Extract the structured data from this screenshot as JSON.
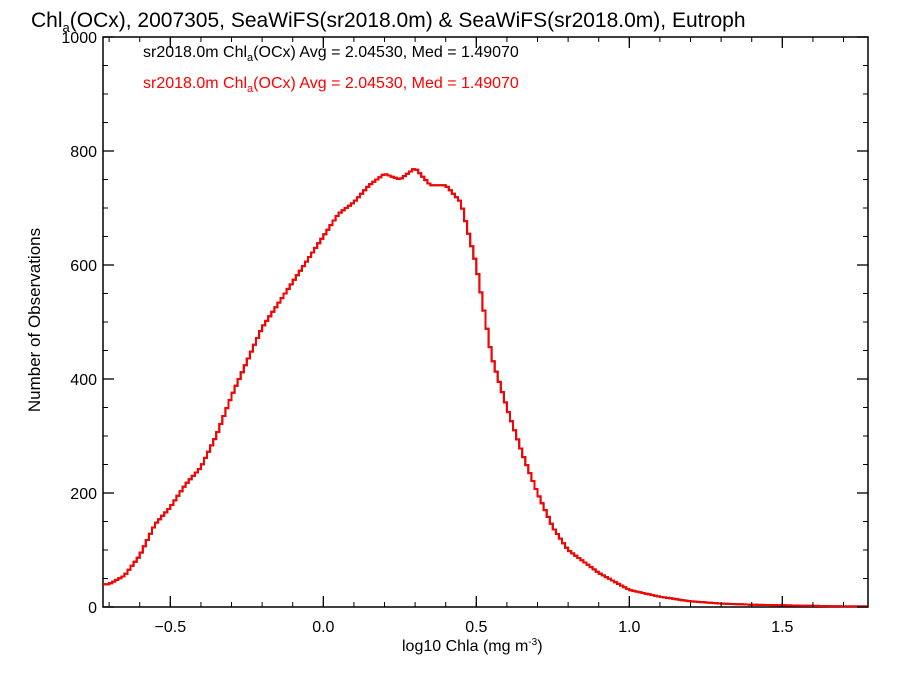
{
  "chart_data": {
    "type": "histogram",
    "title_parts": [
      "Chl",
      "a",
      "(OCx), 2007305, SeaWiFS(sr2018.0m) & SeaWiFS(sr2018.0m), Eutroph"
    ],
    "xlabel_parts": [
      "log10 Chla (mg m",
      "-3",
      ")"
    ],
    "ylabel": "Number of Observations",
    "xlim": [
      -0.72,
      1.78
    ],
    "ylim": [
      0,
      1000
    ],
    "xticks": [
      -0.5,
      0.0,
      0.5,
      1.0,
      1.5
    ],
    "xtick_labels": [
      "−0.5",
      "0.0",
      "0.5",
      "1.0",
      "1.5"
    ],
    "yticks": [
      0,
      200,
      400,
      600,
      800,
      1000
    ],
    "ytick_labels": [
      "0",
      "200",
      "400",
      "600",
      "800",
      "1000"
    ],
    "grid": false,
    "legend_position": "top-left",
    "series": [
      {
        "name_parts": [
          "sr2018.0m Chl",
          "a",
          "(OCx) Avg = 2.04530, Med = 1.49070"
        ],
        "color": "#000000"
      },
      {
        "name_parts": [
          "sr2018.0m Chl",
          "a",
          "(OCx) Avg = 2.04530, Med = 1.49070"
        ],
        "color": "#ff0000"
      }
    ],
    "x": [
      -0.7,
      -0.65,
      -0.6,
      -0.55,
      -0.5,
      -0.45,
      -0.4,
      -0.35,
      -0.3,
      -0.25,
      -0.2,
      -0.15,
      -0.1,
      -0.05,
      0.0,
      0.05,
      0.1,
      0.15,
      0.2,
      0.25,
      0.3,
      0.35,
      0.4,
      0.45,
      0.5,
      0.55,
      0.6,
      0.65,
      0.7,
      0.75,
      0.8,
      0.85,
      0.9,
      0.95,
      1.0,
      1.1,
      1.2,
      1.3,
      1.4,
      1.5,
      1.6,
      1.7,
      1.78
    ],
    "y": [
      40,
      55,
      90,
      145,
      175,
      215,
      245,
      300,
      370,
      430,
      490,
      530,
      570,
      610,
      650,
      690,
      710,
      740,
      760,
      750,
      770,
      740,
      740,
      710,
      600,
      440,
      350,
      270,
      200,
      140,
      100,
      80,
      60,
      45,
      30,
      18,
      10,
      6,
      4,
      3,
      2,
      1,
      1
    ]
  }
}
